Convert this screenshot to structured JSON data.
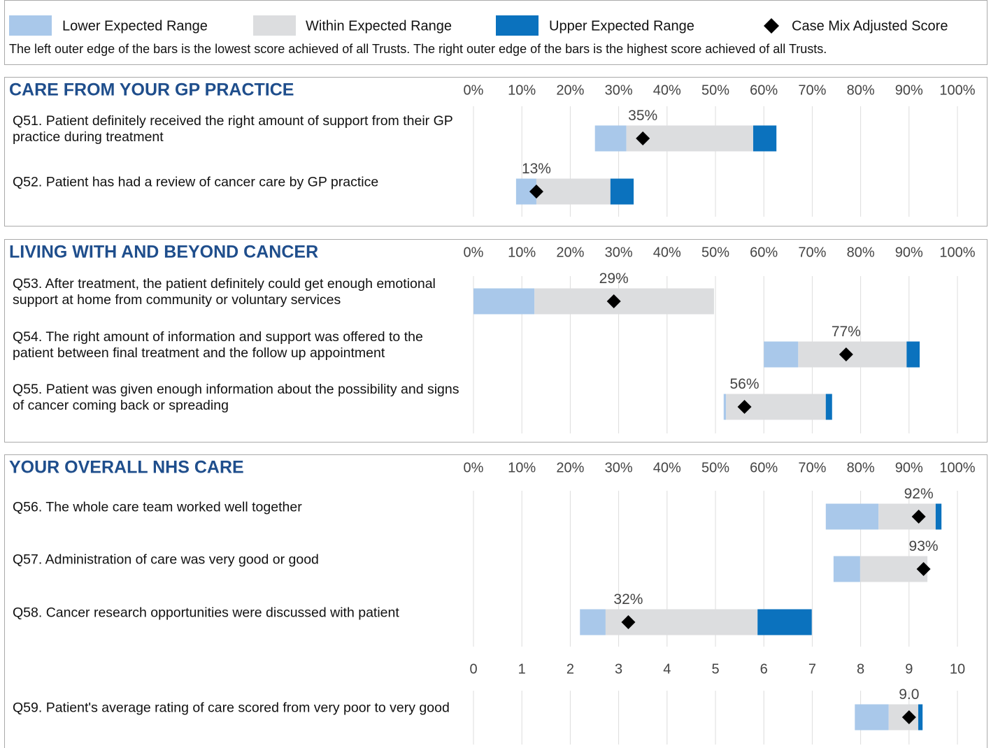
{
  "legend": {
    "items": [
      {
        "name": "Lower Expected Range",
        "color": "#a9c8ea"
      },
      {
        "name": "Within Expected Range",
        "color": "#dcdddf"
      },
      {
        "name": "Upper Expected Range",
        "color": "#0b72be"
      },
      {
        "name": "Case Mix Adjusted Score",
        "color": "#000000"
      }
    ],
    "note": "The left outer edge of the bars is the lowest score achieved of all Trusts. The right outer edge of the bars is the highest score achieved of all Trusts."
  },
  "chart_data": [
    {
      "type": "range_bar",
      "title": "CARE FROM YOUR GP PRACTICE",
      "categories": [
        "Q51. Patient definitely received the right amount of support from their GP practice during treatment",
        "Q52. Patient has had a review of cancer care by GP practice"
      ],
      "min": [
        25.1,
        8.8
      ],
      "low": [
        31.6,
        13.0
      ],
      "high": [
        57.8,
        28.3
      ],
      "max": [
        62.6,
        33.1
      ],
      "values": [
        35,
        13
      ],
      "value_labels": [
        "35%",
        "13%"
      ],
      "xlim": [
        0,
        100
      ],
      "xticks": [
        {
          "value": 0,
          "label": "0%"
        },
        {
          "value": 10,
          "label": "10%"
        },
        {
          "value": 20,
          "label": "20%"
        },
        {
          "value": 30,
          "label": "30%"
        },
        {
          "value": 40,
          "label": "40%"
        },
        {
          "value": 50,
          "label": "50%"
        },
        {
          "value": 60,
          "label": "60%"
        },
        {
          "value": 70,
          "label": "70%"
        },
        {
          "value": 80,
          "label": "80%"
        },
        {
          "value": 90,
          "label": "90%"
        },
        {
          "value": 100,
          "label": "100%"
        }
      ],
      "grid": true
    },
    {
      "type": "range_bar",
      "title": "LIVING WITH AND BEYOND CANCER",
      "categories": [
        "Q53. After treatment, the patient definitely could get enough emotional support at home from community or voluntary services",
        "Q54. The right amount of information and support was offered to the patient between final treatment and the follow up appointment",
        "Q55. Patient was given enough information about the possibility and signs of cancer coming back or spreading"
      ],
      "min": [
        0,
        60.0,
        51.7
      ],
      "low": [
        12.6,
        67.1,
        52.2
      ],
      "high": [
        49.7,
        89.5,
        72.8
      ],
      "max": [
        49.7,
        92.2,
        74.1
      ],
      "values": [
        29,
        77,
        56
      ],
      "value_labels": [
        "29%",
        "77%",
        "56%"
      ],
      "xlim": [
        0,
        100
      ],
      "xticks": [
        {
          "value": 0,
          "label": "0%"
        },
        {
          "value": 10,
          "label": "10%"
        },
        {
          "value": 20,
          "label": "20%"
        },
        {
          "value": 30,
          "label": "30%"
        },
        {
          "value": 40,
          "label": "40%"
        },
        {
          "value": 50,
          "label": "50%"
        },
        {
          "value": 60,
          "label": "60%"
        },
        {
          "value": 70,
          "label": "70%"
        },
        {
          "value": 80,
          "label": "80%"
        },
        {
          "value": 90,
          "label": "90%"
        },
        {
          "value": 100,
          "label": "100%"
        }
      ],
      "grid": true
    },
    {
      "type": "range_bar",
      "title": "YOUR OVERALL NHS CARE",
      "categories": [
        "Q56. The whole care team worked well together",
        "Q57. Administration of care was very good or good",
        "Q58. Cancer research opportunities were discussed with patient"
      ],
      "min": [
        72.8,
        74.4,
        22.0
      ],
      "low": [
        83.7,
        79.9,
        27.3
      ],
      "high": [
        95.5,
        93.8,
        58.7
      ],
      "max": [
        96.7,
        93.8,
        69.9
      ],
      "values": [
        92,
        93,
        32
      ],
      "value_labels": [
        "92%",
        "93%",
        "32%"
      ],
      "xlim": [
        0,
        100
      ],
      "xticks": [
        {
          "value": 0,
          "label": "0%"
        },
        {
          "value": 10,
          "label": "10%"
        },
        {
          "value": 20,
          "label": "20%"
        },
        {
          "value": 30,
          "label": "30%"
        },
        {
          "value": 40,
          "label": "40%"
        },
        {
          "value": 50,
          "label": "50%"
        },
        {
          "value": 60,
          "label": "60%"
        },
        {
          "value": 70,
          "label": "70%"
        },
        {
          "value": 80,
          "label": "80%"
        },
        {
          "value": 90,
          "label": "90%"
        },
        {
          "value": 100,
          "label": "100%"
        }
      ],
      "grid": true
    },
    {
      "type": "range_bar",
      "categories": [
        "Q59. Patient's average rating of care scored from very poor to very good"
      ],
      "min": [
        7.88
      ],
      "low": [
        8.58
      ],
      "high": [
        9.19
      ],
      "max": [
        9.28
      ],
      "values": [
        9.0
      ],
      "value_labels": [
        "9.0"
      ],
      "xlim": [
        0,
        10
      ],
      "xticks": [
        0,
        1,
        2,
        3,
        4,
        5,
        6,
        7,
        8,
        9,
        10
      ],
      "grid": true
    }
  ]
}
